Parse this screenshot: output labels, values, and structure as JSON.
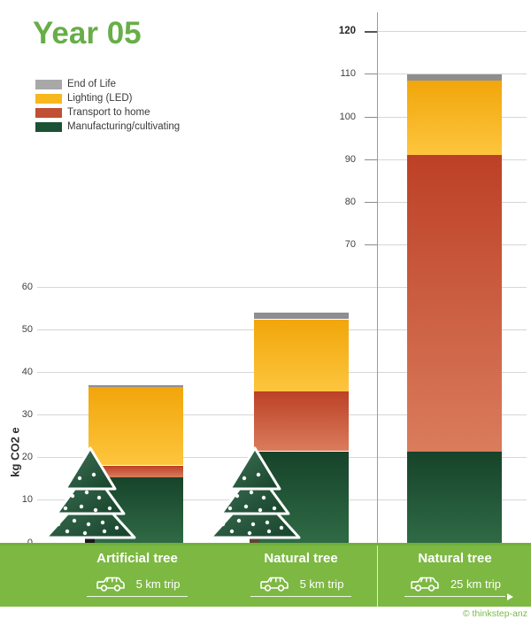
{
  "title": "Year 05",
  "ylabel": "kg CO2 e",
  "legend": [
    {
      "label": "End of Life",
      "color": "#a8a8a8"
    },
    {
      "label": "Lighting (LED)",
      "color": "#f6b81d"
    },
    {
      "label": "Transport to home",
      "color": "#c04f33"
    },
    {
      "label": "Manufacturing/cultivating",
      "color": "#1b5235"
    }
  ],
  "chart_data": {
    "type": "bar",
    "stacked": true,
    "title": "Year 05",
    "ylabel": "kg CO2 e",
    "grid": true,
    "categories": [
      "Artificial tree",
      "Natural tree",
      "Natural tree"
    ],
    "trip_labels": [
      "5 km trip",
      "5 km trip",
      "25 km trip"
    ],
    "series": [
      {
        "name": "Manufacturing/cultivating",
        "color": "#1b5235",
        "values": [
          15.5,
          21.5,
          21.5
        ]
      },
      {
        "name": "Transport to home",
        "color": "#c04f33",
        "values": [
          2.7,
          14.0,
          69.5
        ]
      },
      {
        "name": "Lighting (LED)",
        "color": "#f6b81d",
        "values": [
          18.3,
          17.0,
          17.5
        ]
      },
      {
        "name": "End of Life",
        "color": "#a8a8a8",
        "values": [
          0.5,
          1.5,
          1.5
        ]
      }
    ],
    "left_axis_ticks": [
      0,
      10,
      20,
      30,
      40,
      50,
      60
    ],
    "right_axis_ticks": [
      70,
      80,
      90,
      100,
      110,
      120
    ],
    "ylim_left": [
      0,
      60
    ],
    "ylim_right": [
      0,
      120
    ]
  },
  "footer": {
    "credit": "© thinkstep-anz"
  }
}
